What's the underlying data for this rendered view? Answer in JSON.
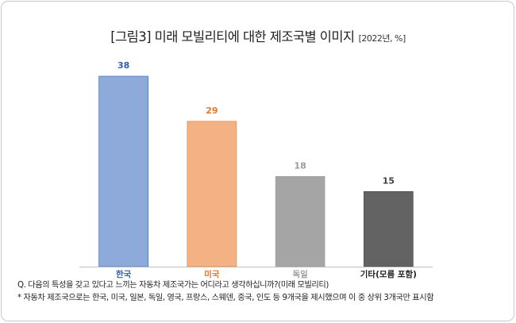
{
  "chart_data": {
    "type": "bar",
    "title": "[그림3] 미래 모빌리티에 대한 제조국별 이미지",
    "subtitle": "[2022년, %]",
    "categories": [
      "한국",
      "미국",
      "독일",
      "기타(모름 포함)"
    ],
    "values": [
      38,
      29,
      18,
      15
    ],
    "colors": [
      "#8eaadb",
      "#f4b183",
      "#a5a5a5",
      "#636363"
    ],
    "label_colors": [
      "#2e5fb3",
      "#e07a2e",
      "#9a9a9a",
      "#404040"
    ],
    "category_label_colors": [
      "#2e5fb3",
      "#e07a2e",
      "#9a9a9a",
      "#222222"
    ],
    "ylim": [
      0,
      38
    ],
    "grid": false,
    "legend": "none"
  },
  "notes": {
    "question": "Q. 다음의 특성을 갖고 있다고 느끼는 자동차 제조국가는 어디라고 생각하십니까?(미래 모빌리티)",
    "footnote": "* 자동차 제조국으로는 한국, 미국, 일본, 독일, 영국, 프랑스, 스웨덴, 중국, 인도 등 9개국을 제시했으며 이 중 상위 3개국만 표시함"
  }
}
